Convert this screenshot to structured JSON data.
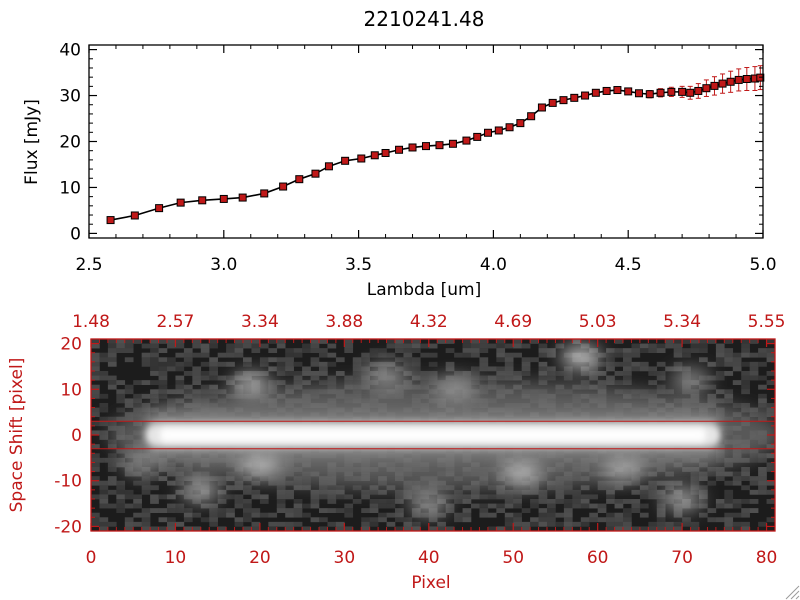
{
  "colors": {
    "data_red": "#c01818",
    "axis_black": "#000000",
    "image_axis_red": "#c01818",
    "background": "#ffffff"
  },
  "chart_data": [
    {
      "type": "line",
      "title": "2210241.48",
      "xlabel": "Lambda [um]",
      "ylabel": "Flux [mJy]",
      "xlim": [
        2.5,
        5.0
      ],
      "ylim": [
        -1,
        41
      ],
      "x_ticks": [
        "2.5",
        "3.0",
        "3.5",
        "4.0",
        "4.5",
        "5.0"
      ],
      "y_ticks": [
        "0",
        "10",
        "20",
        "30",
        "40"
      ],
      "markers": "filled red squares with black outline, black connecting line, red error bars",
      "series": [
        {
          "x": [
            2.58,
            2.67,
            2.76,
            2.84,
            2.92,
            3.0,
            3.07,
            3.15,
            3.22,
            3.28,
            3.34,
            3.39,
            3.45,
            3.51,
            3.56,
            3.6,
            3.65,
            3.7,
            3.75,
            3.8,
            3.85,
            3.9,
            3.94,
            3.98,
            4.02,
            4.06,
            4.1,
            4.14,
            4.18,
            4.22,
            4.26,
            4.3,
            4.34,
            4.38,
            4.42,
            4.46,
            4.5,
            4.54,
            4.58,
            4.62,
            4.66,
            4.7,
            4.73,
            4.76,
            4.79,
            4.82,
            4.85,
            4.88,
            4.91,
            4.94,
            4.97,
            4.99
          ],
          "y": [
            2.9,
            3.9,
            5.5,
            6.7,
            7.2,
            7.5,
            7.8,
            8.7,
            10.2,
            11.8,
            13.0,
            14.6,
            15.8,
            16.3,
            17.0,
            17.5,
            18.2,
            18.7,
            19.0,
            19.2,
            19.5,
            20.2,
            21.0,
            21.9,
            22.4,
            23.1,
            24.0,
            25.5,
            27.4,
            28.4,
            29.0,
            29.5,
            30.0,
            30.6,
            31.0,
            31.2,
            30.9,
            30.5,
            30.3,
            30.6,
            30.8,
            30.8,
            30.6,
            31.0,
            31.6,
            32.1,
            32.6,
            33.0,
            33.4,
            33.6,
            33.7,
            33.9
          ],
          "err": [
            0.3,
            0.3,
            0.3,
            0.3,
            0.3,
            0.3,
            0.3,
            0.3,
            0.3,
            0.3,
            0.3,
            0.3,
            0.3,
            0.3,
            0.3,
            0.3,
            0.3,
            0.3,
            0.3,
            0.3,
            0.3,
            0.3,
            0.3,
            0.3,
            0.3,
            0.3,
            0.3,
            0.3,
            0.3,
            0.3,
            0.4,
            0.4,
            0.4,
            0.4,
            0.5,
            0.5,
            0.6,
            0.7,
            0.8,
            0.9,
            1.0,
            1.2,
            1.4,
            1.6,
            1.8,
            2.0,
            2.1,
            2.3,
            2.4,
            2.5,
            2.6,
            2.6
          ]
        }
      ]
    },
    {
      "type": "heatmap",
      "xlabel": "Pixel",
      "ylabel": "Space Shift [pixel]",
      "xlim": [
        0,
        81
      ],
      "ylim": [
        -21,
        21
      ],
      "x_ticks": [
        "0",
        "10",
        "20",
        "30",
        "40",
        "50",
        "60",
        "70",
        "80"
      ],
      "y_ticks": [
        "-20",
        "-10",
        "0",
        "10",
        "20"
      ],
      "top_ticks": [
        "1.48",
        "2.57",
        "3.34",
        "3.88",
        "4.32",
        "4.69",
        "5.03",
        "5.34",
        "5.55"
      ],
      "colormap": "grayscale",
      "extraction_window_rows": [
        -3,
        3
      ],
      "trace": {
        "center_row": 0,
        "x_start": 6,
        "x_end": 75
      },
      "blobs": [
        {
          "x": 58,
          "y": 17,
          "amp": 0.45
        },
        {
          "x": 19,
          "y": 11,
          "amp": 0.35
        },
        {
          "x": 35,
          "y": 13,
          "amp": 0.25
        },
        {
          "x": 43,
          "y": 10,
          "amp": 0.25
        },
        {
          "x": 71,
          "y": 12,
          "amp": 0.2
        },
        {
          "x": 20,
          "y": -6,
          "amp": 0.45
        },
        {
          "x": 51,
          "y": -8,
          "amp": 0.4
        },
        {
          "x": 63,
          "y": -7,
          "amp": 0.35
        },
        {
          "x": 70,
          "y": -14,
          "amp": 0.3
        },
        {
          "x": 13,
          "y": -12,
          "amp": 0.3
        },
        {
          "x": 40,
          "y": -15,
          "amp": 0.25
        },
        {
          "x": 6,
          "y": -6,
          "amp": 0.2
        }
      ]
    }
  ]
}
